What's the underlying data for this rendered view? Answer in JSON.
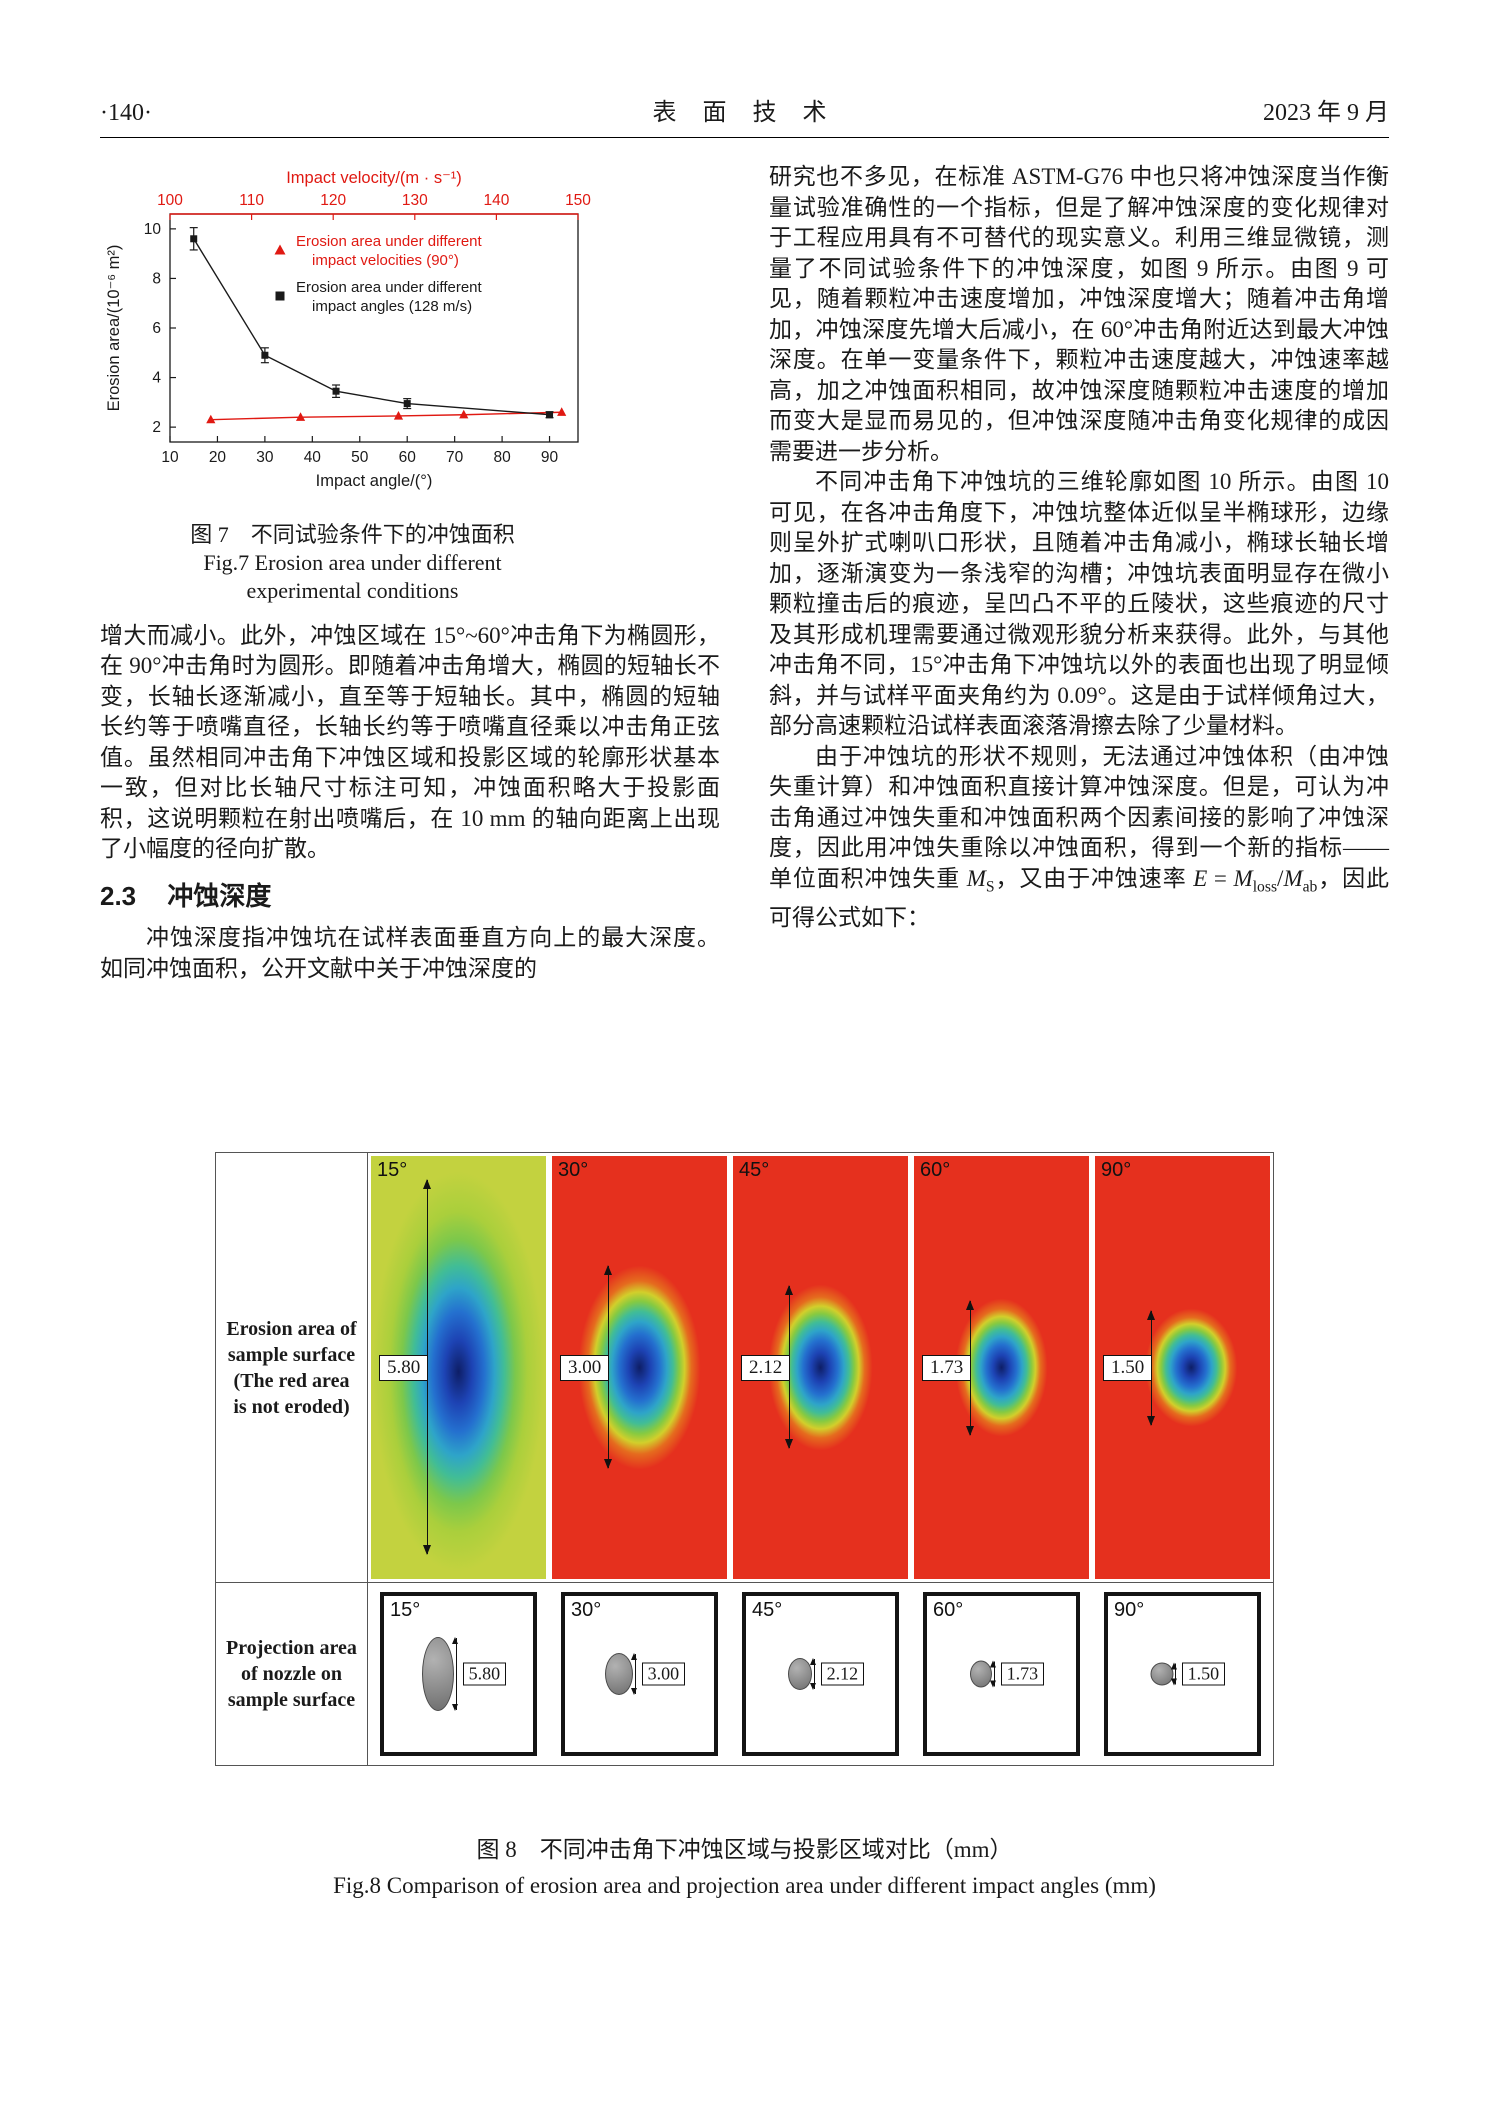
{
  "header": {
    "page_number": "·140·",
    "journal_title": "表 面 技 术",
    "issue_date": "2023 年 9 月"
  },
  "figure7": {
    "caption_zh": "图 7　不同试验条件下的冲蚀面积",
    "caption_en_line1": "Fig.7 Erosion area under different",
    "caption_en_line2": "experimental conditions"
  },
  "chart_data": {
    "type": "line",
    "top_axis": {
      "label": "Impact velocity/(m · s⁻¹)",
      "ticks": [
        100,
        110,
        120,
        130,
        140,
        150
      ],
      "range": [
        100,
        150
      ],
      "color": "#e01912"
    },
    "bottom_axis": {
      "label": "Impact angle/(°)",
      "ticks": [
        10,
        20,
        30,
        40,
        50,
        60,
        70,
        80,
        90
      ],
      "range": [
        10,
        96
      ]
    },
    "y_axis": {
      "label": "Erosion area/(10⁻⁶ m²)",
      "ticks": [
        2,
        4,
        6,
        8,
        10
      ],
      "range": [
        1.4,
        10.6
      ]
    },
    "grid": false,
    "legend_position": "inside-top",
    "series": [
      {
        "name": "Erosion area under different impact velocities (90°)",
        "name_lines": [
          "Erosion area under different",
          "impact velocities (90°)"
        ],
        "color": "#e01912",
        "marker": "triangle",
        "x_axis": "top",
        "x": [
          105,
          116,
          128,
          136,
          148
        ],
        "y": [
          2.3,
          2.4,
          2.45,
          2.5,
          2.6
        ]
      },
      {
        "name": "Erosion area under different impact angles (128 m/s)",
        "name_lines": [
          "Erosion area under different",
          "impact angles (128 m/s)"
        ],
        "color": "#1a1a1a",
        "marker": "square",
        "x_axis": "bottom",
        "x": [
          15,
          30,
          45,
          60,
          90
        ],
        "y": [
          9.6,
          4.9,
          3.45,
          2.95,
          2.5
        ],
        "y_err": [
          0.45,
          0.3,
          0.25,
          0.2,
          0.12
        ]
      }
    ]
  },
  "left_column": {
    "para1": "增大而减小。此外，冲蚀区域在 15°~60°冲击角下为椭圆形，在 90°冲击角时为圆形。即随着冲击角增大，椭圆的短轴长不变，长轴长逐渐减小，直至等于短轴长。其中，椭圆的短轴长约等于喷嘴直径，长轴长约等于喷嘴直径乘以冲击角正弦值。虽然相同冲击角下冲蚀区域和投影区域的轮廓形状基本一致，但对比长轴尺寸标注可知，冲蚀面积略大于投影面积，这说明颗粒在射出喷嘴后，在 10 mm 的轴向距离上出现了小幅度的径向扩散。",
    "section_number": "2.3",
    "section_title": "冲蚀深度",
    "para2": "冲蚀深度指冲蚀坑在试样表面垂直方向上的最大深度。如同冲蚀面积，公开文献中关于冲蚀深度的"
  },
  "right_column": {
    "para1": "研究也不多见，在标准 ASTM-G76 中也只将冲蚀深度当作衡量试验准确性的一个指标，但是了解冲蚀深度的变化规律对于工程应用具有不可替代的现实意义。利用三维显微镜，测量了不同试验条件下的冲蚀深度，如图 9 所示。由图 9 可见，随着颗粒冲击速度增加，冲蚀深度增大；随着冲击角增加，冲蚀深度先增大后减小，在 60°冲击角附近达到最大冲蚀深度。在单一变量条件下，颗粒冲击速度越大，冲蚀速率越高，加之冲蚀面积相同，故冲蚀深度随颗粒冲击速度的增加而变大是显而易见的，但冲蚀深度随冲击角变化规律的成因需要进一步分析。",
    "para2": "不同冲击角下冲蚀坑的三维轮廓如图 10 所示。由图 10 可见，在各冲击角度下，冲蚀坑整体近似呈半椭球形，边缘则呈外扩式喇叭口形状，且随着冲击角减小，椭球长轴长增加，逐渐演变为一条浅窄的沟槽；冲蚀坑表面明显存在微小颗粒撞击后的痕迹，呈凹凸不平的丘陵状，这些痕迹的尺寸及其形成机理需要通过微观形貌分析来获得。此外，与其他冲击角不同，15°冲击角下冲蚀坑以外的表面也出现了明显倾斜，并与试样平面夹角约为 0.09°。这是由于试样倾角过大，部分高速颗粒沿试样表面滚落滑擦去除了少量材料。",
    "para3": {
      "t1": "由于冲蚀坑的形状不规则，无法通过冲蚀体积（由冲蚀失重计算）和冲蚀面积直接计算冲蚀深度。但是，可认为冲击角通过冲蚀失重和冲蚀面积两个因素间接的影响了冲蚀深度，因此用冲蚀失重除以冲蚀面积，得到一个新的指标——单位面积冲蚀失重 ",
      "m": "M",
      "m1_sub": "S",
      "t2": "，又由于冲蚀速率 ",
      "e": "E",
      "t3": " = ",
      "m2_sub": "loss",
      "t4": "/",
      "m3_sub": "ab",
      "t5": "，因此可得公式如下："
    }
  },
  "figure8": {
    "row1_label": "Erosion area of sample surface (The red area is not eroded)",
    "row2_label": "Projection area of nozzle on sample surface",
    "cells": [
      {
        "angle": "15°",
        "dim": "5.80"
      },
      {
        "angle": "30°",
        "dim": "3.00"
      },
      {
        "angle": "45°",
        "dim": "2.12"
      },
      {
        "angle": "60°",
        "dim": "1.73"
      },
      {
        "angle": "90°",
        "dim": "1.50"
      }
    ],
    "caption_zh": "图 8　不同冲击角下冲蚀区域与投影区域对比（mm）",
    "caption_en": "Fig.8 Comparison of erosion area and projection area under different impact angles (mm)"
  }
}
